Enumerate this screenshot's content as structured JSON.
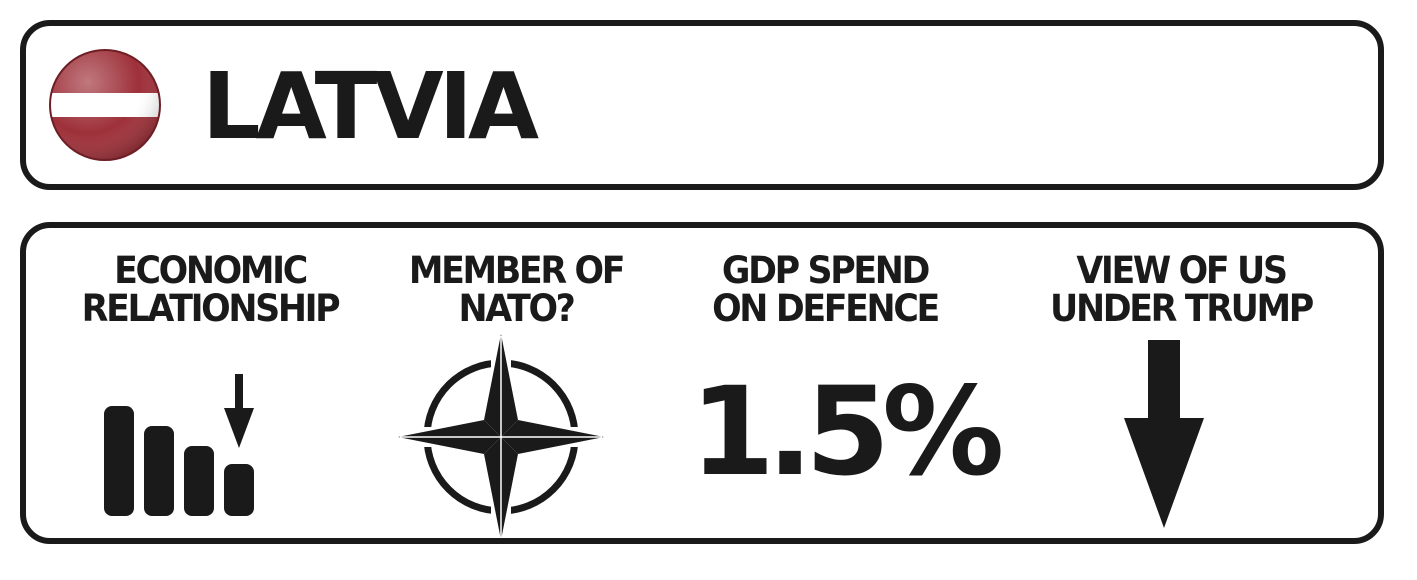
{
  "header": {
    "country": "LATVIA",
    "flag_icon": "latvia-flag-icon",
    "flag_colors": {
      "carmine": "#9e3039",
      "white": "#ffffff"
    }
  },
  "stats": {
    "economic": {
      "label_line1": "ECONOMIC",
      "label_line2": "RELATIONSHIP",
      "icon": "declining-bars-icon",
      "trend": "down"
    },
    "nato": {
      "label_line1": "MEMBER OF",
      "label_line2": "NATO?",
      "icon": "nato-compass-star-icon"
    },
    "gdp": {
      "label_line1": "GDP SPEND",
      "label_line2": "ON DEFENCE",
      "value": "1.5%"
    },
    "view": {
      "label_line1": "VIEW OF US",
      "label_line2": "UNDER TRUMP",
      "icon": "arrow-down-icon",
      "trend": "down"
    }
  },
  "colors": {
    "ink": "#1a1a1a",
    "background": "#ffffff"
  }
}
